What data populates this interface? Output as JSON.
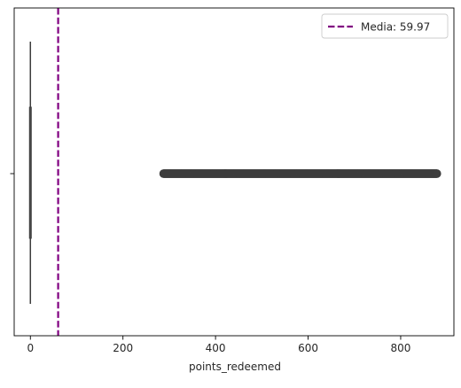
{
  "chart_data": {
    "type": "boxplot",
    "orientation": "horizontal",
    "xlabel": "points_redeemed",
    "ylabel": "",
    "xlim": [
      -35,
      915
    ],
    "x_ticks": [
      0,
      200,
      400,
      600,
      800
    ],
    "x_tick_labels": [
      "0",
      "200",
      "400",
      "600",
      "800"
    ],
    "y_ticks": [
      ""
    ],
    "grid": false,
    "box": {
      "q1": 0,
      "median": 0,
      "q3": 0,
      "whisker_low": 0,
      "whisker_high": 0,
      "color": "#3d3d3d",
      "outliers_range": [
        288,
        878
      ]
    },
    "reference_line": {
      "label": "Media: 59.97",
      "value": 59.97,
      "color": "#800080",
      "style": "dashed"
    },
    "legend_location": "upper-right"
  }
}
